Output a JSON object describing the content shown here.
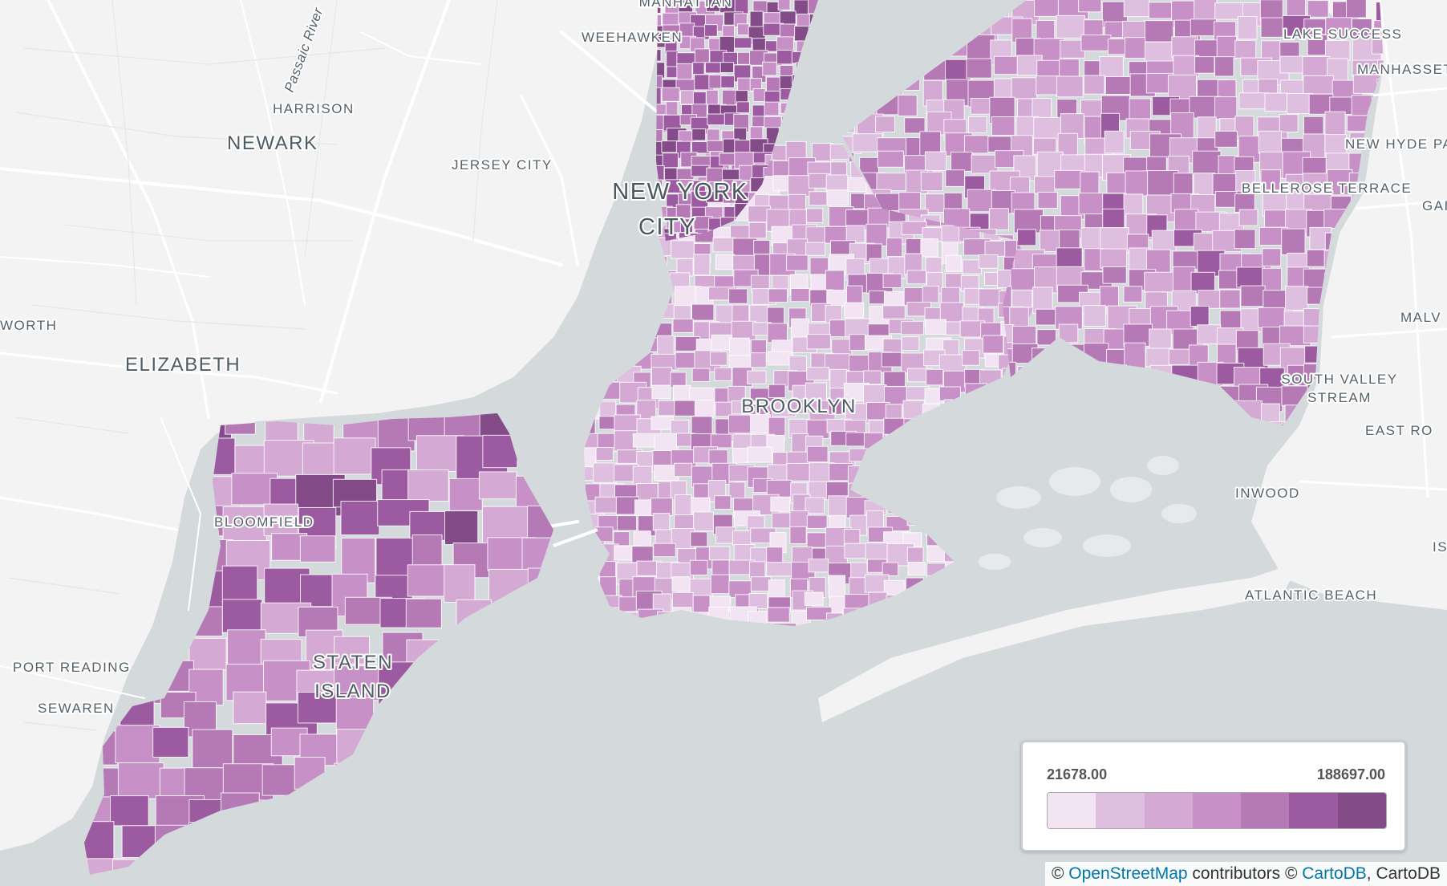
{
  "map": {
    "labels": {
      "manhattan": "MANHATTAN",
      "weehawken": "WEEHAWKEN",
      "passaic_river": "Passaic River",
      "harrison": "HARRISON",
      "newark": "NEWARK",
      "jersey_city": "JERSEY CITY",
      "new_york_city_line1": "NEW YORK",
      "new_york_city_line2": "CITY",
      "lake_success": "LAKE SUCCESS",
      "manhasset": "MANHASSET",
      "new_hyde_park": "NEW HYDE PA",
      "bellerose_terrace": "BELLEROSE TERRACE",
      "gar": "GAI",
      "worth": "WORTH",
      "elizabeth": "ELIZABETH",
      "malv": "MALV",
      "south_valley_stream_line1": "SOUTH VALLEY",
      "south_valley_stream_line2": "STREAM",
      "east_ro": "EAST RO",
      "brooklyn": "BROOKLYN",
      "bloomfield": "BLOOMFIELD",
      "inwood": "INWOOD",
      "is": "IS",
      "port_reading": "PORT READING",
      "staten_island_line1": "STATEN",
      "staten_island_line2": "ISLAND",
      "sewaren": "SEWAREN",
      "atlantic_beach": "ATLANTIC BEACH"
    }
  },
  "legend": {
    "min": "21678.00",
    "max": "188697.00",
    "colors": [
      "#f2e4f2",
      "#dfbfdf",
      "#d4aad4",
      "#c791c7",
      "#b57ab5",
      "#9c5aa0",
      "#834b88"
    ]
  },
  "colors": {
    "water": "#d4dadc",
    "land": "#f3f3f3",
    "road": "#ffffff"
  },
  "attribution": {
    "prefix": "© ",
    "osm_link": "OpenStreetMap",
    "middle": " contributors © ",
    "carto_link": "CartoDB",
    "suffix": ", CartoDB"
  }
}
